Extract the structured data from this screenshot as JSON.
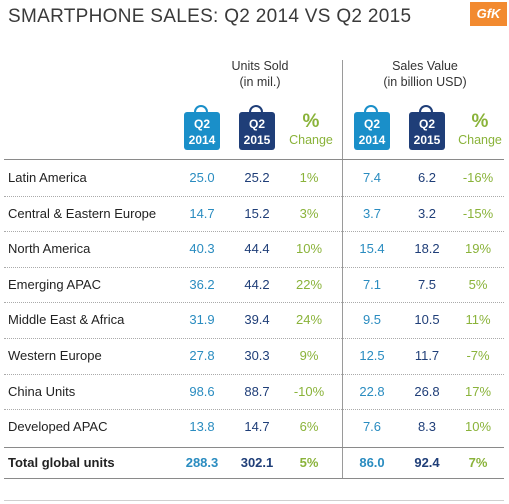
{
  "chart_data": {
    "type": "table",
    "title": "SMARTPHONE SALES: Q2 2014 VS Q2 2015",
    "logo_text": "GfK",
    "groups": [
      {
        "label_line1": "Units Sold",
        "label_line2": "(in mil.)"
      },
      {
        "label_line1": "Sales Value",
        "label_line2": "(in billion USD)"
      }
    ],
    "column_headers": {
      "q2_2014": [
        "Q2",
        "2014"
      ],
      "q2_2015": [
        "Q2",
        "2015"
      ],
      "pct_symbol": "%",
      "pct_label": "Change"
    },
    "rows": [
      {
        "region": "Latin America",
        "units_2014": "25.0",
        "units_2015": "25.2",
        "units_change": "1%",
        "value_2014": "7.4",
        "value_2015": "6.2",
        "value_change": "-16%"
      },
      {
        "region": "Central & Eastern Europe",
        "units_2014": "14.7",
        "units_2015": "15.2",
        "units_change": "3%",
        "value_2014": "3.7",
        "value_2015": "3.2",
        "value_change": "-15%"
      },
      {
        "region": "North America",
        "units_2014": "40.3",
        "units_2015": "44.4",
        "units_change": "10%",
        "value_2014": "15.4",
        "value_2015": "18.2",
        "value_change": "19%"
      },
      {
        "region": "Emerging APAC",
        "units_2014": "36.2",
        "units_2015": "44.2",
        "units_change": "22%",
        "value_2014": "7.1",
        "value_2015": "7.5",
        "value_change": "5%"
      },
      {
        "region": "Middle East & Africa",
        "units_2014": "31.9",
        "units_2015": "39.4",
        "units_change": "24%",
        "value_2014": "9.5",
        "value_2015": "10.5",
        "value_change": "11%"
      },
      {
        "region": "Western Europe",
        "units_2014": "27.8",
        "units_2015": "30.3",
        "units_change": "9%",
        "value_2014": "12.5",
        "value_2015": "11.7",
        "value_change": "-7%"
      },
      {
        "region": "China Units",
        "units_2014": "98.6",
        "units_2015": "88.7",
        "units_change": "-10%",
        "value_2014": "22.8",
        "value_2015": "26.8",
        "value_change": "17%"
      },
      {
        "region": "Developed APAC",
        "units_2014": "13.8",
        "units_2015": "14.7",
        "units_change": "6%",
        "value_2014": "7.6",
        "value_2015": "8.3",
        "value_change": "10%"
      }
    ],
    "total": {
      "region": "Total global units",
      "units_2014": "288.3",
      "units_2015": "302.1",
      "units_change": "5%",
      "value_2014": "86.0",
      "value_2015": "92.4",
      "value_change": "7%"
    }
  },
  "colors": {
    "q2_2014": "#1a8fc9",
    "q2_2015": "#1f3e78",
    "change": "#8ab33a",
    "logo": "#f28a30"
  }
}
